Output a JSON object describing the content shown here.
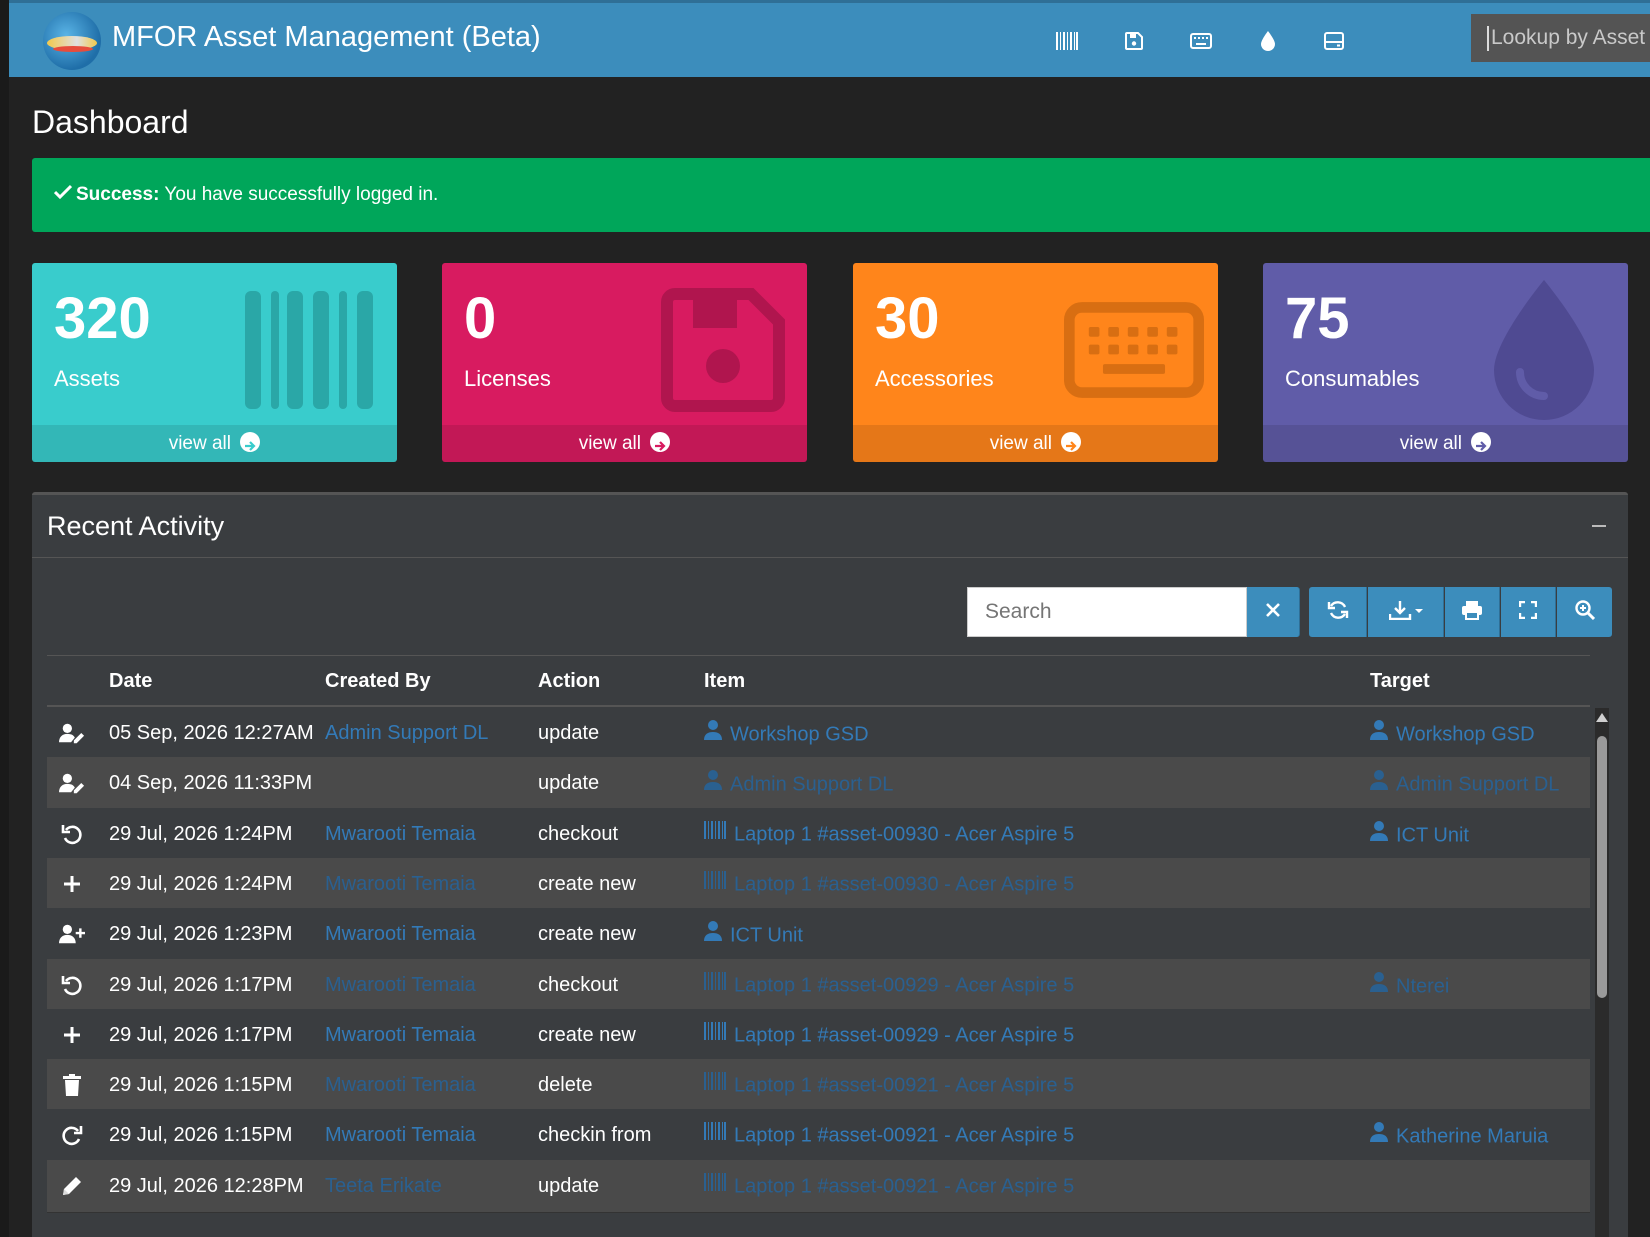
{
  "app": {
    "title": "MFOR Asset Management (Beta)"
  },
  "header": {
    "icons": [
      "barcode-icon",
      "floppy-disk-icon",
      "keyboard-icon",
      "droplet-icon",
      "hard-drive-icon"
    ],
    "lookup_placeholder": "Lookup by Asset"
  },
  "page": {
    "title": "Dashboard"
  },
  "alert": {
    "strong": "Success:",
    "message": "You have successfully logged in.",
    "color": "#00a65a"
  },
  "tiles": [
    {
      "count": "320",
      "label": "Assets",
      "footer": "view all",
      "color": "#39cccc",
      "icon": "barcode-icon"
    },
    {
      "count": "0",
      "label": "Licenses",
      "footer": "view all",
      "color": "#d81b60",
      "icon": "floppy-disk-icon"
    },
    {
      "count": "30",
      "label": "Accessories",
      "footer": "view all",
      "color": "#ff851b",
      "icon": "keyboard-icon"
    },
    {
      "count": "75",
      "label": "Consumables",
      "footer": "view all",
      "color": "#605ca8",
      "icon": "droplet-icon"
    }
  ],
  "activity": {
    "title": "Recent Activity",
    "search_placeholder": "Search",
    "columns": {
      "date": "Date",
      "created_by": "Created By",
      "action": "Action",
      "item": "Item",
      "target": "Target"
    },
    "rows": [
      {
        "icon": "user-edit-icon",
        "date": "05 Sep, 2026 12:27AM",
        "created_by": "Admin Support DL",
        "action": "update",
        "item_type": "user",
        "item": "Workshop GSD",
        "target_type": "user",
        "target": "Workshop GSD"
      },
      {
        "icon": "user-edit-icon",
        "date": "04 Sep, 2026 11:33PM",
        "created_by": "",
        "action": "update",
        "item_type": "user",
        "item": "Admin Support DL",
        "target_type": "user",
        "target": "Admin Support DL"
      },
      {
        "icon": "undo-icon",
        "date": "29 Jul, 2026 1:24PM",
        "created_by": "Mwarooti Temaia",
        "action": "checkout",
        "item_type": "asset",
        "item": "Laptop 1 #asset-00930 - Acer Aspire 5",
        "target_type": "user",
        "target": "ICT Unit"
      },
      {
        "icon": "plus-icon",
        "date": "29 Jul, 2026 1:24PM",
        "created_by": "Mwarooti Temaia",
        "action": "create new",
        "item_type": "asset",
        "item": "Laptop 1 #asset-00930 - Acer Aspire 5",
        "target_type": "",
        "target": ""
      },
      {
        "icon": "user-plus-icon",
        "date": "29 Jul, 2026 1:23PM",
        "created_by": "Mwarooti Temaia",
        "action": "create new",
        "item_type": "user",
        "item": "ICT Unit",
        "target_type": "",
        "target": ""
      },
      {
        "icon": "undo-icon",
        "date": "29 Jul, 2026 1:17PM",
        "created_by": "Mwarooti Temaia",
        "action": "checkout",
        "item_type": "asset",
        "item": "Laptop 1 #asset-00929 - Acer Aspire 5",
        "target_type": "user",
        "target": "Nterei"
      },
      {
        "icon": "plus-icon",
        "date": "29 Jul, 2026 1:17PM",
        "created_by": "Mwarooti Temaia",
        "action": "create new",
        "item_type": "asset",
        "item": "Laptop 1 #asset-00929 - Acer Aspire 5",
        "target_type": "",
        "target": ""
      },
      {
        "icon": "trash-icon",
        "date": "29 Jul, 2026 1:15PM",
        "created_by": "Mwarooti Temaia",
        "action": "delete",
        "item_type": "asset",
        "item": "Laptop 1 #asset-00921 - Acer Aspire 5",
        "target_type": "",
        "target": ""
      },
      {
        "icon": "redo-icon",
        "date": "29 Jul, 2026 1:15PM",
        "created_by": "Mwarooti Temaia",
        "action": "checkin from",
        "item_type": "asset",
        "item": "Laptop 1 #asset-00921 - Acer Aspire 5",
        "target_type": "user",
        "target": "Katherine Maruia"
      },
      {
        "icon": "pencil-icon",
        "date": "29 Jul, 2026 12:28PM",
        "created_by": "Teeta Erikate",
        "action": "update",
        "item_type": "asset",
        "item": "Laptop 1 #asset-00921 - Acer Aspire 5",
        "target_type": "",
        "target": ""
      }
    ]
  }
}
